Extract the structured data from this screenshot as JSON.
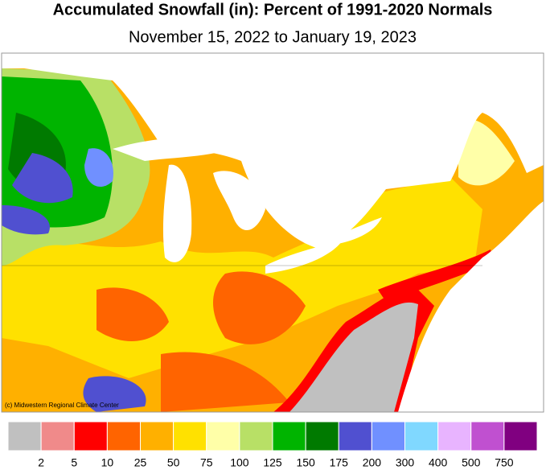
{
  "title": "Accumulated Snowfall (in): Percent of 1991-2020 Normals",
  "subtitle": "November 15, 2022 to January 19, 2023",
  "credit": "(c) Midwestern Regional Climate Center",
  "legend": {
    "colors": [
      "#c0c0c0",
      "#f08a8a",
      "#ff0000",
      "#ff6400",
      "#ffb000",
      "#ffe100",
      "#ffffa8",
      "#b8e066",
      "#00b400",
      "#007a00",
      "#5050d0",
      "#7090ff",
      "#80d8ff",
      "#e8b4ff",
      "#c050d0",
      "#800080"
    ],
    "labels": [
      2,
      5,
      10,
      25,
      50,
      75,
      100,
      125,
      150,
      175,
      200,
      300,
      400,
      500,
      750
    ]
  }
}
